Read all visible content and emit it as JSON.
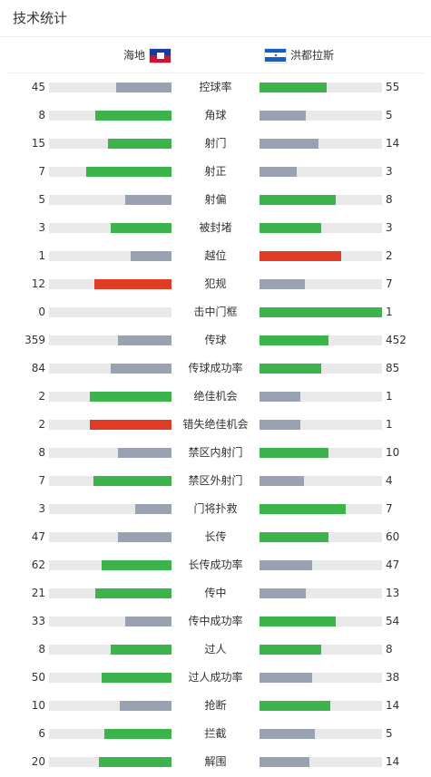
{
  "section_title": "技术统计",
  "teams": {
    "home": {
      "name": "海地",
      "flag_icon": "haiti-flag-icon"
    },
    "away": {
      "name": "洪都拉斯",
      "flag_icon": "honduras-flag-icon"
    }
  },
  "colors": {
    "leader": "#3cb44b",
    "trailer": "#9aa1b0",
    "negative": "#e03d26",
    "track": "#e9e9e9"
  },
  "stats": [
    {
      "label": "控球率",
      "home": "45",
      "away": "55",
      "home_fill": 0.45,
      "away_fill": 0.55,
      "home_color": "gray",
      "away_color": "green"
    },
    {
      "label": "角球",
      "home": "8",
      "away": "5",
      "home_fill": 0.62,
      "away_fill": 0.38,
      "home_color": "green",
      "away_color": "gray"
    },
    {
      "label": "射门",
      "home": "15",
      "away": "14",
      "home_fill": 0.52,
      "away_fill": 0.48,
      "home_color": "green",
      "away_color": "gray"
    },
    {
      "label": "射正",
      "home": "7",
      "away": "3",
      "home_fill": 0.7,
      "away_fill": 0.3,
      "home_color": "green",
      "away_color": "gray"
    },
    {
      "label": "射偏",
      "home": "5",
      "away": "8",
      "home_fill": 0.38,
      "away_fill": 0.62,
      "home_color": "gray",
      "away_color": "green"
    },
    {
      "label": "被封堵",
      "home": "3",
      "away": "3",
      "home_fill": 0.5,
      "away_fill": 0.5,
      "home_color": "green",
      "away_color": "green"
    },
    {
      "label": "越位",
      "home": "1",
      "away": "2",
      "home_fill": 0.33,
      "away_fill": 0.67,
      "home_color": "gray",
      "away_color": "red"
    },
    {
      "label": "犯规",
      "home": "12",
      "away": "7",
      "home_fill": 0.63,
      "away_fill": 0.37,
      "home_color": "red",
      "away_color": "gray"
    },
    {
      "label": "击中门框",
      "home": "0",
      "away": "1",
      "home_fill": 0,
      "away_fill": 1,
      "home_color": "gray",
      "away_color": "green"
    },
    {
      "label": "传球",
      "home": "359",
      "away": "452",
      "home_fill": 0.44,
      "away_fill": 0.56,
      "home_color": "gray",
      "away_color": "green"
    },
    {
      "label": "传球成功率",
      "home": "84",
      "away": "85",
      "home_fill": 0.5,
      "away_fill": 0.5,
      "home_color": "gray",
      "away_color": "green"
    },
    {
      "label": "绝佳机会",
      "home": "2",
      "away": "1",
      "home_fill": 0.67,
      "away_fill": 0.33,
      "home_color": "green",
      "away_color": "gray"
    },
    {
      "label": "错失绝佳机会",
      "home": "2",
      "away": "1",
      "home_fill": 0.67,
      "away_fill": 0.33,
      "home_color": "red",
      "away_color": "gray"
    },
    {
      "label": "禁区内射门",
      "home": "8",
      "away": "10",
      "home_fill": 0.44,
      "away_fill": 0.56,
      "home_color": "gray",
      "away_color": "green"
    },
    {
      "label": "禁区外射门",
      "home": "7",
      "away": "4",
      "home_fill": 0.64,
      "away_fill": 0.36,
      "home_color": "green",
      "away_color": "gray"
    },
    {
      "label": "门将扑救",
      "home": "3",
      "away": "7",
      "home_fill": 0.3,
      "away_fill": 0.7,
      "home_color": "gray",
      "away_color": "green"
    },
    {
      "label": "长传",
      "home": "47",
      "away": "60",
      "home_fill": 0.44,
      "away_fill": 0.56,
      "home_color": "gray",
      "away_color": "green"
    },
    {
      "label": "长传成功率",
      "home": "62",
      "away": "47",
      "home_fill": 0.57,
      "away_fill": 0.43,
      "home_color": "green",
      "away_color": "gray"
    },
    {
      "label": "传中",
      "home": "21",
      "away": "13",
      "home_fill": 0.62,
      "away_fill": 0.38,
      "home_color": "green",
      "away_color": "gray"
    },
    {
      "label": "传中成功率",
      "home": "33",
      "away": "54",
      "home_fill": 0.38,
      "away_fill": 0.62,
      "home_color": "gray",
      "away_color": "green"
    },
    {
      "label": "过人",
      "home": "8",
      "away": "8",
      "home_fill": 0.5,
      "away_fill": 0.5,
      "home_color": "green",
      "away_color": "green"
    },
    {
      "label": "过人成功率",
      "home": "50",
      "away": "38",
      "home_fill": 0.57,
      "away_fill": 0.43,
      "home_color": "green",
      "away_color": "gray"
    },
    {
      "label": "抢断",
      "home": "10",
      "away": "14",
      "home_fill": 0.42,
      "away_fill": 0.58,
      "home_color": "gray",
      "away_color": "green"
    },
    {
      "label": "拦截",
      "home": "6",
      "away": "5",
      "home_fill": 0.55,
      "away_fill": 0.45,
      "home_color": "green",
      "away_color": "gray"
    },
    {
      "label": "解围",
      "home": "20",
      "away": "14",
      "home_fill": 0.59,
      "away_fill": 0.41,
      "home_color": "green",
      "away_color": "gray"
    }
  ]
}
